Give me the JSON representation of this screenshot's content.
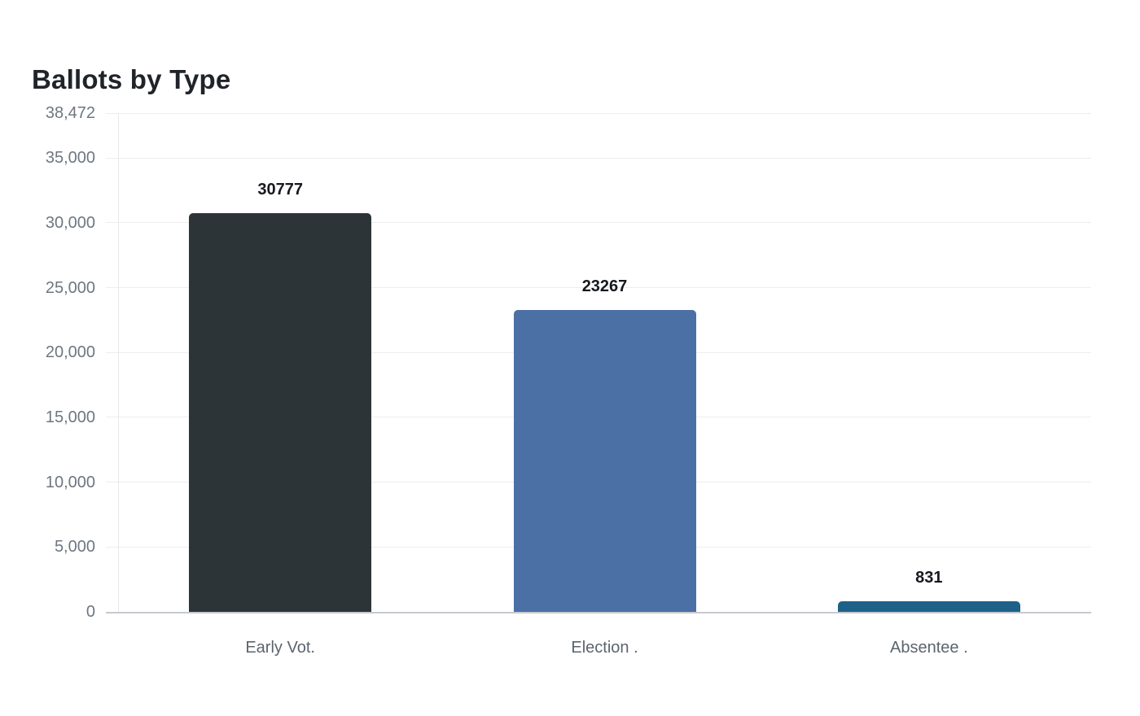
{
  "chart_data": {
    "type": "bar",
    "title": "Ballots by Type",
    "categories": [
      "Early Vot.",
      "Election .",
      "Absentee ."
    ],
    "values": [
      30777,
      23267,
      831
    ],
    "value_labels": [
      "30777",
      "23267",
      "831"
    ],
    "bar_colors": [
      "#2c3438",
      "#4a70a6",
      "#1d6189"
    ],
    "xlabel": "",
    "ylabel": "",
    "y_axis": {
      "min": 0,
      "max": 38472,
      "ticks": [
        {
          "value": 0,
          "label": "0"
        },
        {
          "value": 5000,
          "label": "5,000"
        },
        {
          "value": 10000,
          "label": "10,000"
        },
        {
          "value": 15000,
          "label": "15,000"
        },
        {
          "value": 20000,
          "label": "20,000"
        },
        {
          "value": 25000,
          "label": "25,000"
        },
        {
          "value": 30000,
          "label": "30,000"
        },
        {
          "value": 35000,
          "label": "35,000"
        },
        {
          "value": 38472,
          "label": "38,472"
        }
      ]
    },
    "grid": true,
    "legend": false,
    "colors": {
      "title": "#20242a",
      "value_label": "#16191d",
      "y_tick_label": "#6e7680",
      "x_tick_label": "#5c646e",
      "gridline": "#ededed",
      "axis_line": "#c6c9cc",
      "plot_left_line": "#e7e8e9",
      "background": "#ffffff"
    }
  }
}
